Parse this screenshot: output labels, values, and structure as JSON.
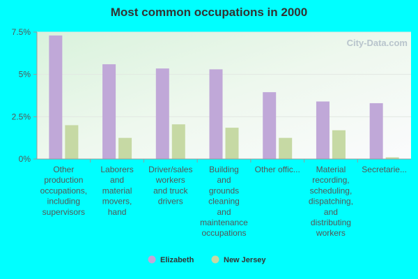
{
  "watermark": "City-Data.com",
  "chart_data": {
    "type": "bar",
    "title": "Most common occupations in 2000",
    "xlabel": "",
    "ylabel": "",
    "ylim": [
      0,
      7.5
    ],
    "yticks": [
      {
        "value": 0,
        "label": "0%"
      },
      {
        "value": 2.5,
        "label": "2.5%"
      },
      {
        "value": 5,
        "label": "5%"
      },
      {
        "value": 7.5,
        "label": "7.5%"
      }
    ],
    "categories": [
      [
        "Other",
        "production",
        "occupations,",
        "including",
        "supervisors"
      ],
      [
        "Laborers",
        "and",
        "material",
        "movers,",
        "hand"
      ],
      [
        "Driver/sales",
        "workers",
        "and truck",
        "drivers"
      ],
      [
        "Building",
        "and",
        "grounds",
        "cleaning",
        "and",
        "maintenance",
        "occupations"
      ],
      [
        "Other offic..."
      ],
      [
        "Material",
        "recording,",
        "scheduling,",
        "dispatching,",
        "and",
        "distributing",
        "workers"
      ],
      [
        "Secretarie..."
      ]
    ],
    "series": [
      {
        "name": "Elizabeth",
        "color": "#c0a8d8",
        "values": [
          7.3,
          5.6,
          5.35,
          5.3,
          3.95,
          3.4,
          3.3
        ]
      },
      {
        "name": "New Jersey",
        "color": "#c6d9a4",
        "values": [
          2.0,
          1.25,
          2.05,
          1.85,
          1.25,
          1.7,
          0.1
        ]
      }
    ],
    "grid": true,
    "legend": "bottom-center"
  }
}
